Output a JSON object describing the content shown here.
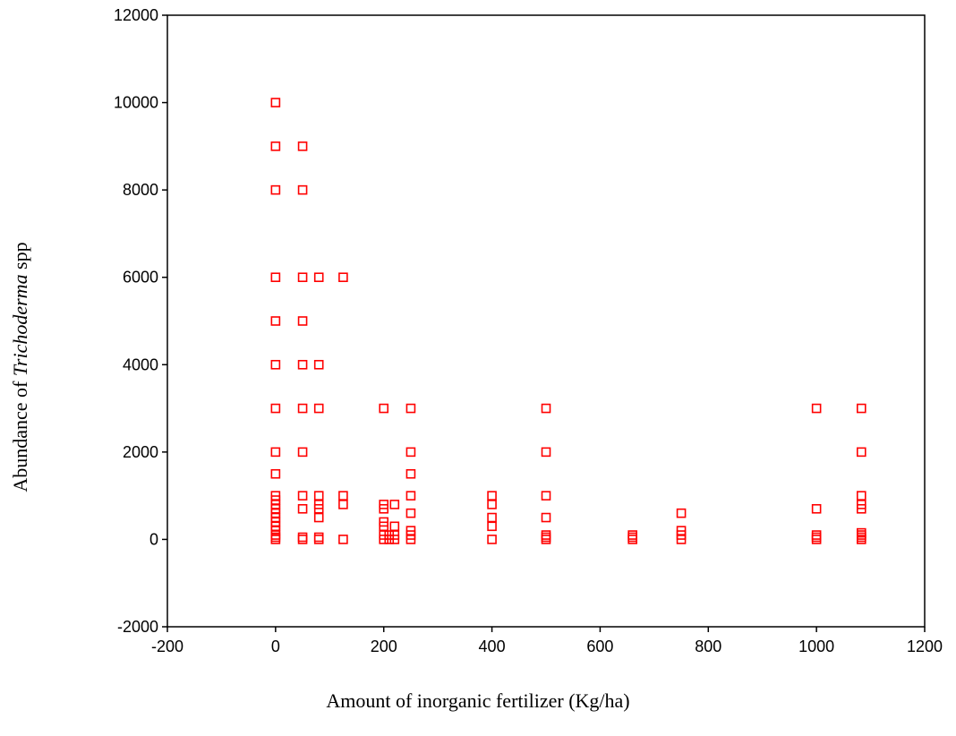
{
  "chart_data": {
    "type": "scatter",
    "title": "",
    "xlabel": "Amount of inorganic fertilizer (Kg/ha)",
    "ylabel_prefix": "Abundance of ",
    "ylabel_italic": "Trichoderma",
    "ylabel_suffix": " spp",
    "xlim": [
      -200,
      1200
    ],
    "ylim": [
      -2000,
      12000
    ],
    "x_ticks": [
      -200,
      0,
      200,
      400,
      600,
      800,
      1000,
      1200
    ],
    "y_ticks": [
      -2000,
      0,
      2000,
      4000,
      6000,
      8000,
      10000,
      12000
    ],
    "grid": false,
    "legend": "none",
    "marker": "open-square",
    "color": "#ff0000",
    "points": [
      [
        0,
        10000
      ],
      [
        0,
        9000
      ],
      [
        0,
        8000
      ],
      [
        0,
        6000
      ],
      [
        0,
        5000
      ],
      [
        0,
        4000
      ],
      [
        0,
        3000
      ],
      [
        0,
        2000
      ],
      [
        0,
        1500
      ],
      [
        0,
        1000
      ],
      [
        0,
        900
      ],
      [
        0,
        800
      ],
      [
        0,
        700
      ],
      [
        0,
        600
      ],
      [
        0,
        500
      ],
      [
        0,
        400
      ],
      [
        0,
        300
      ],
      [
        0,
        200
      ],
      [
        0,
        100
      ],
      [
        0,
        50
      ],
      [
        0,
        0
      ],
      [
        50,
        9000
      ],
      [
        50,
        8000
      ],
      [
        50,
        6000
      ],
      [
        50,
        5000
      ],
      [
        50,
        4000
      ],
      [
        50,
        3000
      ],
      [
        50,
        2000
      ],
      [
        50,
        1000
      ],
      [
        50,
        700
      ],
      [
        50,
        50
      ],
      [
        50,
        0
      ],
      [
        80,
        6000
      ],
      [
        80,
        4000
      ],
      [
        80,
        3000
      ],
      [
        80,
        1000
      ],
      [
        80,
        800
      ],
      [
        80,
        700
      ],
      [
        80,
        500
      ],
      [
        80,
        50
      ],
      [
        80,
        0
      ],
      [
        125,
        6000
      ],
      [
        125,
        1000
      ],
      [
        125,
        800
      ],
      [
        125,
        0
      ],
      [
        200,
        3000
      ],
      [
        200,
        800
      ],
      [
        200,
        700
      ],
      [
        200,
        400
      ],
      [
        200,
        300
      ],
      [
        200,
        100
      ],
      [
        200,
        0
      ],
      [
        210,
        100
      ],
      [
        210,
        0
      ],
      [
        220,
        800
      ],
      [
        220,
        300
      ],
      [
        220,
        100
      ],
      [
        220,
        0
      ],
      [
        250,
        3000
      ],
      [
        250,
        2000
      ],
      [
        250,
        1500
      ],
      [
        250,
        1000
      ],
      [
        250,
        600
      ],
      [
        250,
        200
      ],
      [
        250,
        100
      ],
      [
        250,
        0
      ],
      [
        400,
        1000
      ],
      [
        400,
        800
      ],
      [
        400,
        500
      ],
      [
        400,
        300
      ],
      [
        400,
        0
      ],
      [
        500,
        3000
      ],
      [
        500,
        2000
      ],
      [
        500,
        1000
      ],
      [
        500,
        500
      ],
      [
        500,
        100
      ],
      [
        500,
        50
      ],
      [
        500,
        0
      ],
      [
        660,
        100
      ],
      [
        660,
        50
      ],
      [
        660,
        0
      ],
      [
        750,
        600
      ],
      [
        750,
        200
      ],
      [
        750,
        100
      ],
      [
        750,
        0
      ],
      [
        1000,
        3000
      ],
      [
        1000,
        700
      ],
      [
        1000,
        100
      ],
      [
        1000,
        50
      ],
      [
        1000,
        0
      ],
      [
        1083,
        3000
      ],
      [
        1083,
        2000
      ],
      [
        1083,
        1000
      ],
      [
        1083,
        800
      ],
      [
        1083,
        700
      ],
      [
        1083,
        150
      ],
      [
        1083,
        100
      ],
      [
        1083,
        50
      ],
      [
        1083,
        0
      ]
    ]
  }
}
